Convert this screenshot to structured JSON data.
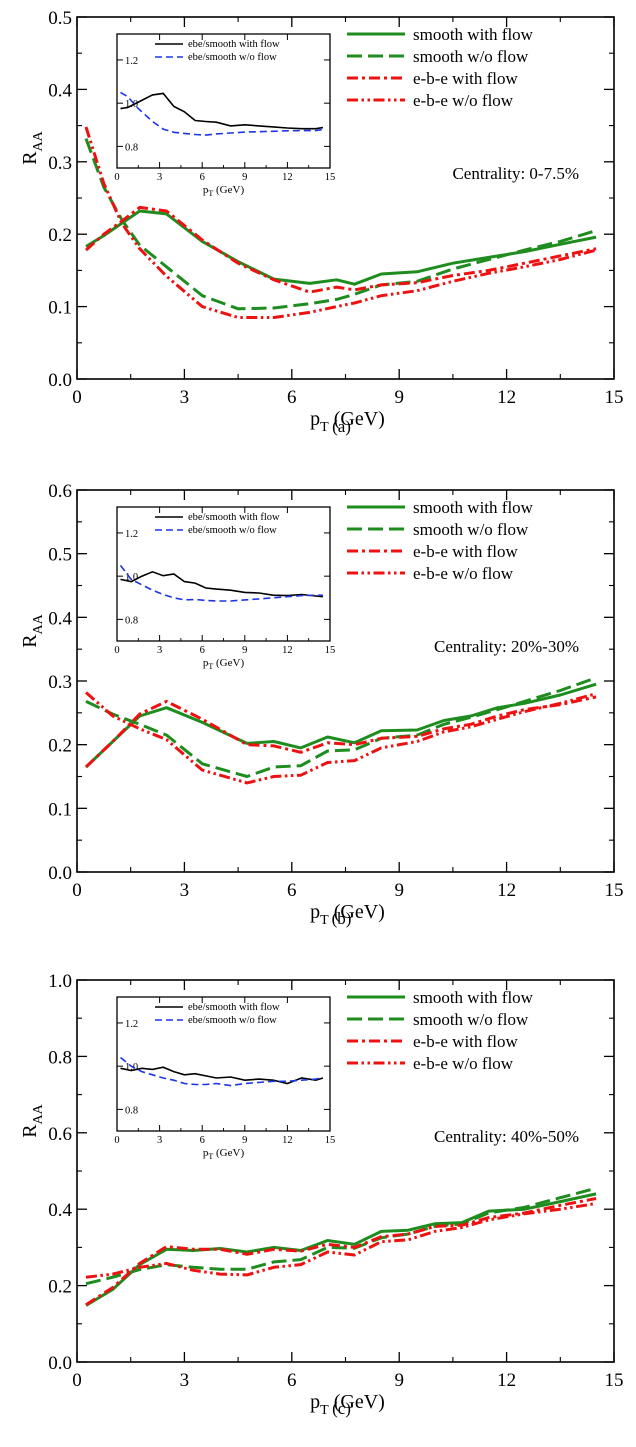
{
  "colors": {
    "smooth": "#1e8c1e",
    "ebe": "#ee1111",
    "ratio_with_flow": "#000000",
    "ratio_wo_flow": "#1d35e6",
    "axes": "#000000"
  },
  "chart_data": [
    {
      "type": "line",
      "caption": "(a)",
      "annotation": "Centrality: 0-7.5%",
      "xlabel": "p",
      "xlabel_sub": "T",
      "xlabel_unit": " (GeV)",
      "ylabel": "R",
      "ylabel_sub": "AA",
      "xlim": [
        0,
        15
      ],
      "ylim": [
        0,
        0.5
      ],
      "xticks": [
        0,
        3,
        6,
        9,
        12,
        15
      ],
      "yticks": [
        0.0,
        0.1,
        0.2,
        0.3,
        0.4,
        0.5
      ],
      "ytick_labels": [
        "0.0",
        "0.1",
        "0.2",
        "0.3",
        "0.4",
        "0.5"
      ],
      "legend": [
        "smooth with flow",
        "smooth w/o flow",
        "e-b-e with flow",
        "e-b-e w/o flow"
      ],
      "x": [
        0.25,
        0.75,
        1.25,
        1.75,
        2.5,
        3.5,
        4.5,
        5.5,
        6.5,
        7.25,
        7.75,
        8.5,
        9.5,
        10.5,
        11.5,
        12.5,
        13.5,
        14.5
      ],
      "series": [
        {
          "name": "smooth with flow",
          "style": "solid",
          "color": "smooth",
          "values": [
            0.183,
            0.198,
            0.215,
            0.232,
            0.228,
            0.19,
            0.162,
            0.138,
            0.132,
            0.137,
            0.131,
            0.145,
            0.148,
            0.16,
            0.168,
            0.176,
            0.186,
            0.196
          ]
        },
        {
          "name": "smooth w/o flow",
          "style": "dash",
          "color": "smooth",
          "values": [
            0.332,
            0.265,
            0.22,
            0.185,
            0.155,
            0.115,
            0.097,
            0.098,
            0.104,
            0.11,
            0.117,
            0.13,
            0.135,
            0.152,
            0.165,
            0.178,
            0.19,
            0.205
          ]
        },
        {
          "name": "e-b-e with flow",
          "style": "dashdot",
          "color": "ebe",
          "values": [
            0.178,
            0.2,
            0.218,
            0.237,
            0.232,
            0.192,
            0.16,
            0.137,
            0.12,
            0.127,
            0.123,
            0.13,
            0.133,
            0.143,
            0.15,
            0.16,
            0.17,
            0.18
          ]
        },
        {
          "name": "e-b-e w/o flow",
          "style": "dashdotdot",
          "color": "ebe",
          "values": [
            0.348,
            0.27,
            0.215,
            0.18,
            0.142,
            0.1,
            0.085,
            0.085,
            0.092,
            0.1,
            0.105,
            0.115,
            0.122,
            0.135,
            0.146,
            0.155,
            0.165,
            0.178
          ]
        }
      ],
      "inset": {
        "xlabel": "p",
        "xlabel_sub": "T",
        "xlabel_unit": " (GeV)",
        "xlim": [
          0,
          15
        ],
        "ylim": [
          0.7,
          1.32
        ],
        "xticks": [
          0,
          3,
          6,
          9,
          12,
          15
        ],
        "yticks": [
          0.8,
          1.0,
          1.2
        ],
        "ytick_labels": [
          "0.8",
          "1.0",
          "1.2"
        ],
        "legend": [
          "ebe/smooth with flow",
          "ebe/smooth w/o flow"
        ],
        "x": [
          0.25,
          0.75,
          1.5,
          2.5,
          3.25,
          4.0,
          4.75,
          5.5,
          6.25,
          7.0,
          8.0,
          9.0,
          10.0,
          11.0,
          12.0,
          13.0,
          14.0,
          14.5
        ],
        "series": [
          {
            "name": "ebe/smooth with flow",
            "style": "solid",
            "color": "ratio_with_flow",
            "values": [
              0.975,
              0.98,
              1.005,
              1.038,
              1.045,
              0.985,
              0.96,
              0.92,
              0.915,
              0.912,
              0.895,
              0.9,
              0.895,
              0.89,
              0.885,
              0.882,
              0.882,
              0.887
            ]
          },
          {
            "name": "ebe/smooth w/o flow",
            "style": "dash",
            "color": "ratio_wo_flow",
            "values": [
              1.05,
              1.03,
              0.975,
              0.915,
              0.88,
              0.865,
              0.86,
              0.855,
              0.852,
              0.858,
              0.862,
              0.866,
              0.868,
              0.87,
              0.872,
              0.873,
              0.873,
              0.878
            ]
          }
        ]
      }
    },
    {
      "type": "line",
      "caption": "(b)",
      "annotation": "Centrality: 20%-30%",
      "xlabel": "p",
      "xlabel_sub": "T",
      "xlabel_unit": " (GeV)",
      "ylabel": "R",
      "ylabel_sub": "AA",
      "xlim": [
        0,
        15
      ],
      "ylim": [
        0,
        0.6
      ],
      "xticks": [
        0,
        3,
        6,
        9,
        12,
        15
      ],
      "yticks": [
        0.0,
        0.1,
        0.2,
        0.3,
        0.4,
        0.5,
        0.6
      ],
      "ytick_labels": [
        "0.0",
        "0.1",
        "0.2",
        "0.3",
        "0.4",
        "0.5",
        "0.6"
      ],
      "legend": [
        "smooth with flow",
        "smooth w/o flow",
        "e-b-e with flow",
        "e-b-e w/o flow"
      ],
      "x": [
        0.25,
        1.0,
        1.75,
        2.5,
        3.5,
        4.75,
        5.5,
        6.25,
        7.0,
        7.75,
        8.5,
        9.5,
        10.25,
        11.0,
        11.75,
        12.5,
        13.5,
        14.5
      ],
      "series": [
        {
          "name": "smooth with flow",
          "style": "solid",
          "color": "smooth",
          "values": [
            0.165,
            0.205,
            0.245,
            0.258,
            0.235,
            0.202,
            0.205,
            0.195,
            0.212,
            0.203,
            0.222,
            0.223,
            0.238,
            0.245,
            0.258,
            0.265,
            0.278,
            0.295
          ]
        },
        {
          "name": "smooth w/o flow",
          "style": "dash",
          "color": "smooth",
          "values": [
            0.268,
            0.248,
            0.232,
            0.215,
            0.17,
            0.15,
            0.165,
            0.167,
            0.19,
            0.192,
            0.21,
            0.215,
            0.232,
            0.243,
            0.255,
            0.268,
            0.285,
            0.305
          ]
        },
        {
          "name": "e-b-e with flow",
          "style": "dashdot",
          "color": "ebe",
          "values": [
            0.165,
            0.205,
            0.248,
            0.268,
            0.24,
            0.2,
            0.198,
            0.188,
            0.203,
            0.2,
            0.21,
            0.213,
            0.225,
            0.232,
            0.245,
            0.255,
            0.263,
            0.275
          ]
        },
        {
          "name": "e-b-e w/o flow",
          "style": "dashdotdot",
          "color": "ebe",
          "values": [
            0.282,
            0.245,
            0.225,
            0.208,
            0.16,
            0.14,
            0.15,
            0.152,
            0.172,
            0.175,
            0.195,
            0.205,
            0.22,
            0.228,
            0.24,
            0.252,
            0.265,
            0.28
          ]
        }
      ],
      "inset": {
        "xlabel": "p",
        "xlabel_sub": "T",
        "xlabel_unit": " (GeV)",
        "xlim": [
          0,
          15
        ],
        "ylim": [
          0.7,
          1.32
        ],
        "xticks": [
          0,
          3,
          6,
          9,
          12,
          15
        ],
        "yticks": [
          0.8,
          1.0,
          1.2
        ],
        "ytick_labels": [
          "0.8",
          "1.0",
          "1.2"
        ],
        "legend": [
          "ebe/smooth with flow",
          "ebe/smooth w/o flow"
        ],
        "x": [
          0.25,
          1.0,
          1.75,
          2.5,
          3.25,
          4.0,
          4.75,
          5.5,
          6.25,
          7.0,
          8.0,
          9.0,
          10.0,
          11.0,
          12.0,
          13.0,
          14.0,
          14.5
        ],
        "series": [
          {
            "name": "ebe/smooth with flow",
            "style": "solid",
            "color": "ratio_with_flow",
            "values": [
              0.985,
              0.975,
              1.0,
              1.02,
              1.002,
              1.01,
              0.975,
              0.968,
              0.945,
              0.94,
              0.935,
              0.925,
              0.922,
              0.912,
              0.91,
              0.915,
              0.908,
              0.905
            ]
          },
          {
            "name": "ebe/smooth w/o flow",
            "style": "dash",
            "color": "ratio_wo_flow",
            "values": [
              1.05,
              0.985,
              0.96,
              0.935,
              0.915,
              0.9,
              0.89,
              0.892,
              0.888,
              0.885,
              0.885,
              0.89,
              0.895,
              0.9,
              0.905,
              0.91,
              0.912,
              0.912
            ]
          }
        ]
      }
    },
    {
      "type": "line",
      "caption": "(c)",
      "annotation": "Centrality: 40%-50%",
      "xlabel": "p",
      "xlabel_sub": "T",
      "xlabel_unit": " (GeV)",
      "ylabel": "R",
      "ylabel_sub": "AA",
      "xlim": [
        0,
        15
      ],
      "ylim": [
        0,
        1.0
      ],
      "xticks": [
        0,
        3,
        6,
        9,
        12,
        15
      ],
      "yticks": [
        0.0,
        0.2,
        0.4,
        0.6,
        0.8,
        1.0
      ],
      "ytick_labels": [
        "0.0",
        "0.2",
        "0.4",
        "0.6",
        "0.8",
        "1.0"
      ],
      "legend": [
        "smooth with flow",
        "smooth w/o flow",
        "e-b-e with flow",
        "e-b-e w/o flow"
      ],
      "x": [
        0.25,
        1.0,
        1.75,
        2.5,
        3.25,
        4.0,
        4.75,
        5.5,
        6.25,
        7.0,
        7.75,
        8.5,
        9.25,
        10.0,
        10.75,
        11.5,
        12.5,
        13.5,
        14.5
      ],
      "series": [
        {
          "name": "smooth with flow",
          "style": "solid",
          "color": "smooth",
          "values": [
            0.148,
            0.19,
            0.255,
            0.295,
            0.292,
            0.297,
            0.288,
            0.3,
            0.292,
            0.318,
            0.308,
            0.342,
            0.345,
            0.362,
            0.365,
            0.395,
            0.4,
            0.42,
            0.44
          ]
        },
        {
          "name": "smooth w/o flow",
          "style": "dash",
          "color": "smooth",
          "values": [
            0.205,
            0.222,
            0.242,
            0.255,
            0.248,
            0.243,
            0.243,
            0.262,
            0.268,
            0.3,
            0.298,
            0.325,
            0.335,
            0.355,
            0.362,
            0.39,
            0.405,
            0.43,
            0.455
          ]
        },
        {
          "name": "e-b-e with flow",
          "style": "dashdot",
          "color": "ebe",
          "values": [
            0.15,
            0.195,
            0.258,
            0.302,
            0.295,
            0.295,
            0.282,
            0.295,
            0.29,
            0.308,
            0.3,
            0.328,
            0.335,
            0.355,
            0.358,
            0.378,
            0.39,
            0.41,
            0.428
          ]
        },
        {
          "name": "e-b-e w/o flow",
          "style": "dashdotdot",
          "color": "ebe",
          "values": [
            0.222,
            0.23,
            0.248,
            0.258,
            0.24,
            0.23,
            0.228,
            0.248,
            0.255,
            0.288,
            0.28,
            0.315,
            0.32,
            0.342,
            0.352,
            0.372,
            0.388,
            0.4,
            0.415
          ]
        }
      ],
      "inset": {
        "xlabel": "p",
        "xlabel_sub": "T",
        "xlabel_unit": " (GeV)",
        "xlim": [
          0,
          15
        ],
        "ylim": [
          0.7,
          1.32
        ],
        "xticks": [
          0,
          3,
          6,
          9,
          12,
          15
        ],
        "yticks": [
          0.8,
          1.0,
          1.2
        ],
        "ytick_labels": [
          "0.8",
          "1.0",
          "1.2"
        ],
        "legend": [
          "ebe/smooth with flow",
          "ebe/smooth w/o flow"
        ],
        "x": [
          0.25,
          1.0,
          1.75,
          2.5,
          3.25,
          4.0,
          4.75,
          5.5,
          6.25,
          7.0,
          8.0,
          9.0,
          10.0,
          11.0,
          12.0,
          13.0,
          14.0,
          14.5
        ],
        "series": [
          {
            "name": "ebe/smooth with flow",
            "style": "solid",
            "color": "ratio_with_flow",
            "values": [
              0.99,
              0.98,
              0.99,
              0.985,
              0.995,
              0.975,
              0.96,
              0.965,
              0.955,
              0.945,
              0.95,
              0.935,
              0.94,
              0.935,
              0.92,
              0.945,
              0.935,
              0.945
            ]
          },
          {
            "name": "ebe/smooth w/o flow",
            "style": "dash",
            "color": "ratio_wo_flow",
            "values": [
              1.04,
              1.0,
              0.975,
              0.96,
              0.945,
              0.935,
              0.92,
              0.915,
              0.915,
              0.92,
              0.91,
              0.92,
              0.925,
              0.93,
              0.93,
              0.935,
              0.94,
              0.948
            ]
          }
        ]
      }
    }
  ]
}
